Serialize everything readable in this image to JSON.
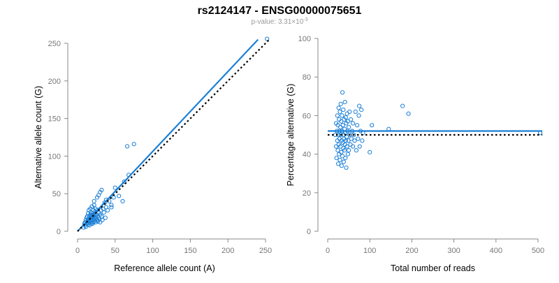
{
  "header": {
    "title": "rs2124147 - ENSG00000075651",
    "pvalue_prefix": "p-value: 3.31×10",
    "pvalue_exponent": "-3"
  },
  "colors": {
    "points": "#1a7fd6",
    "fit": "#1a7fd6",
    "reference": "#000000"
  },
  "chart_data": [
    {
      "type": "scatter",
      "title": "",
      "xlabel": "Reference allele count (A)",
      "ylabel": "Alternative allele count (G)",
      "xlim": [
        0,
        250
      ],
      "ylim": [
        0,
        250
      ],
      "xticks": [
        0,
        50,
        100,
        150,
        200,
        250
      ],
      "yticks": [
        0,
        50,
        100,
        150,
        200,
        250
      ],
      "grid": false,
      "lines": [
        {
          "role": "fit",
          "style": "solid",
          "x": [
            0,
            240
          ],
          "y": [
            0,
            255
          ]
        },
        {
          "role": "reference",
          "style": "dotted",
          "x": [
            0,
            255
          ],
          "y": [
            0,
            255
          ]
        }
      ],
      "points": [
        [
          8,
          5
        ],
        [
          9,
          10
        ],
        [
          10,
          8
        ],
        [
          10,
          12
        ],
        [
          11,
          15
        ],
        [
          11,
          6
        ],
        [
          12,
          18
        ],
        [
          12,
          10
        ],
        [
          13,
          12
        ],
        [
          13,
          20
        ],
        [
          14,
          9
        ],
        [
          14,
          15
        ],
        [
          14,
          24
        ],
        [
          15,
          11
        ],
        [
          15,
          17
        ],
        [
          15,
          28
        ],
        [
          16,
          13
        ],
        [
          16,
          20
        ],
        [
          16,
          8
        ],
        [
          17,
          15
        ],
        [
          17,
          22
        ],
        [
          17,
          30
        ],
        [
          18,
          10
        ],
        [
          18,
          18
        ],
        [
          18,
          25
        ],
        [
          18,
          14
        ],
        [
          19,
          12
        ],
        [
          19,
          20
        ],
        [
          19,
          33
        ],
        [
          20,
          15
        ],
        [
          20,
          24
        ],
        [
          20,
          10
        ],
        [
          20,
          18
        ],
        [
          21,
          12
        ],
        [
          21,
          28
        ],
        [
          21,
          20
        ],
        [
          22,
          16
        ],
        [
          22,
          22
        ],
        [
          22,
          35
        ],
        [
          23,
          14
        ],
        [
          23,
          18
        ],
        [
          23,
          26
        ],
        [
          24,
          20
        ],
        [
          24,
          12
        ],
        [
          24,
          30
        ],
        [
          25,
          17
        ],
        [
          25,
          22
        ],
        [
          26,
          15
        ],
        [
          26,
          28
        ],
        [
          27,
          20
        ],
        [
          27,
          13
        ],
        [
          28,
          25
        ],
        [
          28,
          18
        ],
        [
          29,
          16
        ],
        [
          30,
          22
        ],
        [
          30,
          12
        ],
        [
          31,
          28
        ],
        [
          32,
          20
        ],
        [
          33,
          15
        ],
        [
          34,
          30
        ],
        [
          35,
          25
        ],
        [
          36,
          38
        ],
        [
          37,
          18
        ],
        [
          38,
          32
        ],
        [
          40,
          28
        ],
        [
          42,
          40
        ],
        [
          45,
          35
        ],
        [
          48,
          45
        ],
        [
          50,
          58
        ],
        [
          55,
          47
        ],
        [
          60,
          40
        ],
        [
          28,
          48
        ],
        [
          30,
          52
        ],
        [
          32,
          55
        ],
        [
          26,
          45
        ],
        [
          38,
          42
        ],
        [
          22,
          40
        ],
        [
          45,
          32
        ],
        [
          15,
          14
        ],
        [
          18,
          22
        ],
        [
          66,
          113
        ],
        [
          75,
          116
        ],
        [
          68,
          75
        ],
        [
          62,
          66
        ],
        [
          252,
          256
        ]
      ]
    },
    {
      "type": "scatter",
      "title": "",
      "xlabel": "Total number of reads",
      "ylabel": "Percentage alternative (G)",
      "xlim": [
        0,
        500
      ],
      "ylim": [
        0,
        100
      ],
      "xticks": [
        0,
        100,
        200,
        300,
        400,
        500
      ],
      "yticks": [
        0,
        20,
        40,
        60,
        80,
        100
      ],
      "grid": false,
      "lines": [
        {
          "role": "fit",
          "style": "solid",
          "x": [
            0,
            510
          ],
          "y": [
            52,
            52
          ]
        },
        {
          "role": "reference",
          "style": "dotted",
          "x": [
            0,
            510
          ],
          "y": [
            50,
            50
          ]
        }
      ],
      "points": [
        [
          18,
          50
        ],
        [
          20,
          44
        ],
        [
          20,
          56
        ],
        [
          21,
          38
        ],
        [
          22,
          52
        ],
        [
          23,
          60
        ],
        [
          23,
          47
        ],
        [
          24,
          42
        ],
        [
          24,
          55
        ],
        [
          25,
          50
        ],
        [
          25,
          35
        ],
        [
          26,
          64
        ],
        [
          26,
          45
        ],
        [
          27,
          58
        ],
        [
          27,
          40
        ],
        [
          28,
          52
        ],
        [
          28,
          48
        ],
        [
          29,
          62
        ],
        [
          29,
          37
        ],
        [
          30,
          54
        ],
        [
          30,
          44
        ],
        [
          31,
          50
        ],
        [
          31,
          66
        ],
        [
          32,
          41
        ],
        [
          32,
          57
        ],
        [
          33,
          34
        ],
        [
          33,
          47
        ],
        [
          34,
          60
        ],
        [
          34,
          52
        ],
        [
          35,
          39
        ],
        [
          35,
          72
        ],
        [
          36,
          46
        ],
        [
          36,
          55
        ],
        [
          37,
          43
        ],
        [
          37,
          63
        ],
        [
          38,
          50
        ],
        [
          38,
          36
        ],
        [
          39,
          58
        ],
        [
          39,
          48
        ],
        [
          40,
          42
        ],
        [
          40,
          53
        ],
        [
          41,
          67
        ],
        [
          41,
          45
        ],
        [
          42,
          51
        ],
        [
          42,
          38
        ],
        [
          43,
          59
        ],
        [
          43,
          47
        ],
        [
          44,
          56
        ],
        [
          44,
          33
        ],
        [
          45,
          49
        ],
        [
          46,
          61
        ],
        [
          46,
          44
        ],
        [
          47,
          52
        ],
        [
          48,
          40
        ],
        [
          48,
          57
        ],
        [
          49,
          47
        ],
        [
          50,
          54
        ],
        [
          50,
          42
        ],
        [
          52,
          50
        ],
        [
          52,
          62
        ],
        [
          54,
          45
        ],
        [
          55,
          58
        ],
        [
          56,
          48
        ],
        [
          58,
          52
        ],
        [
          60,
          44
        ],
        [
          60,
          56
        ],
        [
          62,
          50
        ],
        [
          64,
          47
        ],
        [
          66,
          62
        ],
        [
          68,
          42
        ],
        [
          70,
          55
        ],
        [
          72,
          48
        ],
        [
          74,
          60
        ],
        [
          75,
          65
        ],
        [
          76,
          44
        ],
        [
          78,
          52
        ],
        [
          80,
          63
        ],
        [
          82,
          47
        ],
        [
          84,
          51
        ],
        [
          100,
          41
        ],
        [
          105,
          55
        ],
        [
          145,
          53
        ],
        [
          178,
          65
        ],
        [
          192,
          61
        ],
        [
          505,
          51
        ]
      ]
    }
  ]
}
